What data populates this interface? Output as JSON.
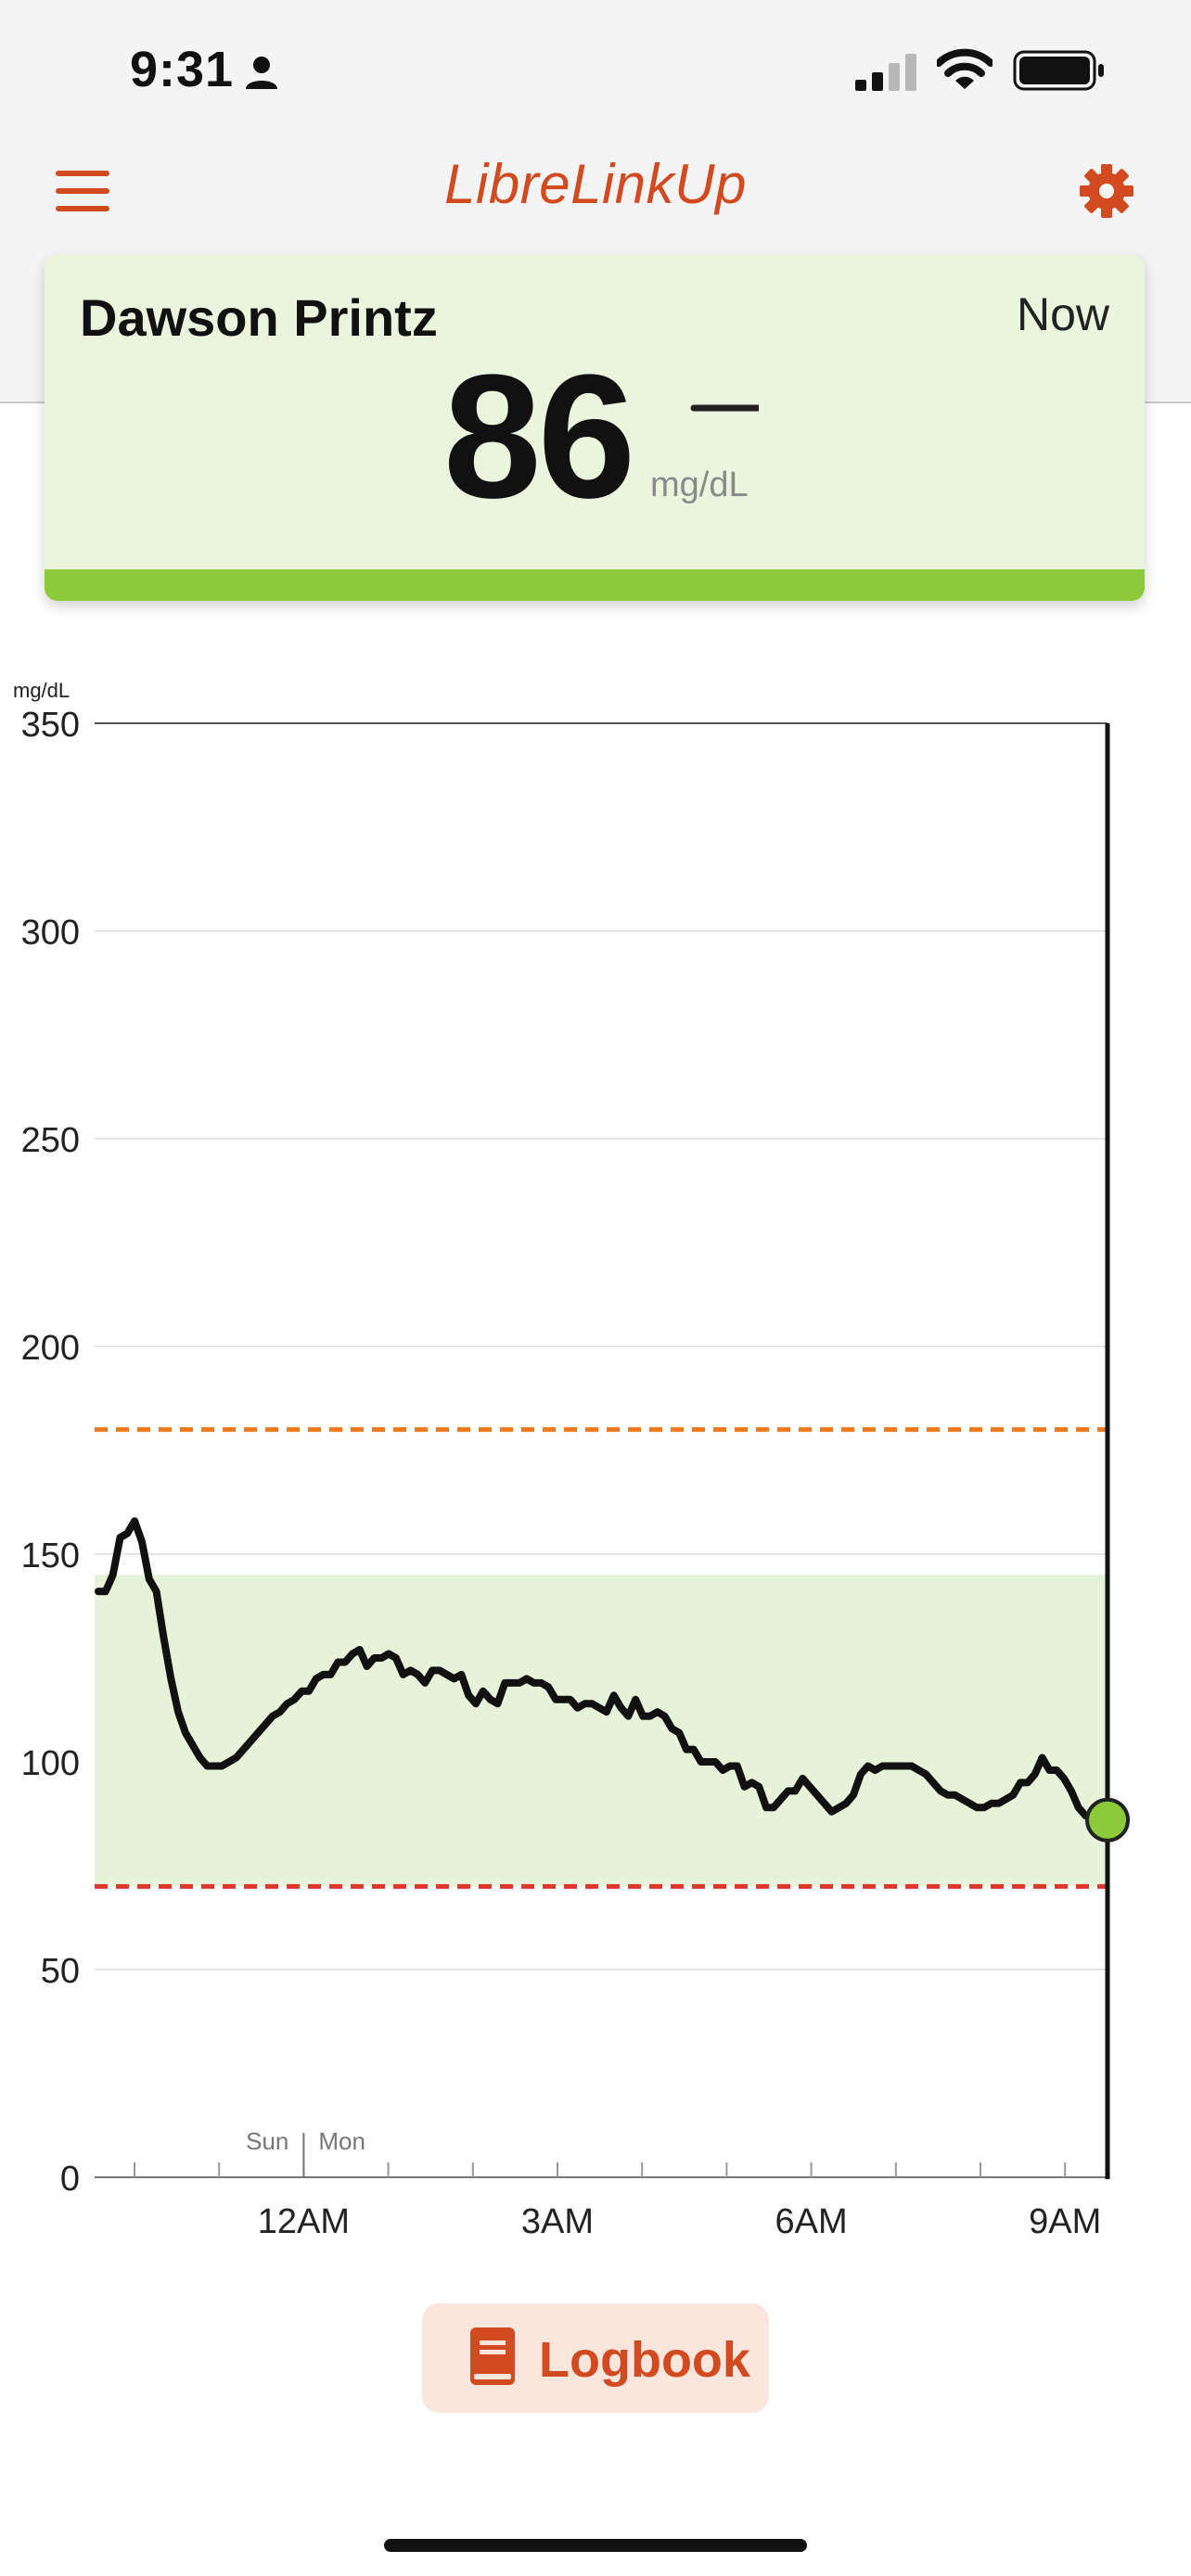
{
  "status_bar": {
    "time": "9:31"
  },
  "header": {
    "title": "LibreLinkUp"
  },
  "reading_card": {
    "name": "Dawson Printz",
    "time_label": "Now",
    "value": "86",
    "unit": "mg/dL",
    "trend": "steady"
  },
  "colors": {
    "brand": "#d14a20",
    "card_bg": "#ebf5dd",
    "in_range_bar": "#8dca3a",
    "target_band": "#e6f3d9",
    "high_line": "#ee7a1e",
    "low_line": "#e0352b",
    "current_point": "#8dca3a"
  },
  "chart_data": {
    "type": "line",
    "ylabel": "mg/dL",
    "ylim": [
      0,
      350
    ],
    "yticks": [
      "350",
      "300",
      "250",
      "200",
      "150",
      "100",
      "50",
      "0"
    ],
    "x_labels": [
      "12AM",
      "3AM",
      "6AM",
      "9AM"
    ],
    "day_labels": [
      "Sun",
      "Mon"
    ],
    "target_range": [
      70,
      145
    ],
    "high_threshold": 180,
    "low_threshold": 70,
    "series": [
      {
        "values": [
          141,
          141,
          145,
          154,
          155,
          158,
          153,
          144,
          141,
          130,
          120,
          112,
          107,
          104,
          101,
          99,
          99,
          99,
          100,
          101,
          103,
          105,
          107,
          109,
          111,
          112,
          114,
          115,
          117,
          117,
          120,
          121,
          121,
          124,
          124,
          126,
          127,
          123,
          125,
          125,
          126,
          125,
          121,
          122,
          121,
          119,
          122,
          122,
          121,
          120,
          121,
          116,
          114,
          117,
          115,
          114,
          119,
          119,
          119,
          120,
          119,
          119,
          118,
          115,
          115,
          115,
          113,
          114,
          114,
          113,
          112,
          116,
          113,
          111,
          115,
          111,
          111,
          112,
          111,
          108,
          107,
          103,
          103,
          100,
          100,
          100,
          98,
          99,
          99,
          94,
          95,
          94,
          89,
          89,
          91,
          93,
          93,
          96,
          94,
          92,
          90,
          88,
          89,
          90,
          92,
          97,
          99,
          98,
          99,
          99,
          99,
          99,
          99,
          98,
          97,
          95,
          93,
          92,
          92,
          91,
          90,
          89,
          89,
          90,
          90,
          91,
          92,
          95,
          95,
          97,
          101,
          98,
          98,
          96,
          93,
          89,
          87,
          87,
          86,
          86
        ]
      }
    ],
    "current_value": 86
  },
  "logbook": {
    "label": "Logbook"
  }
}
